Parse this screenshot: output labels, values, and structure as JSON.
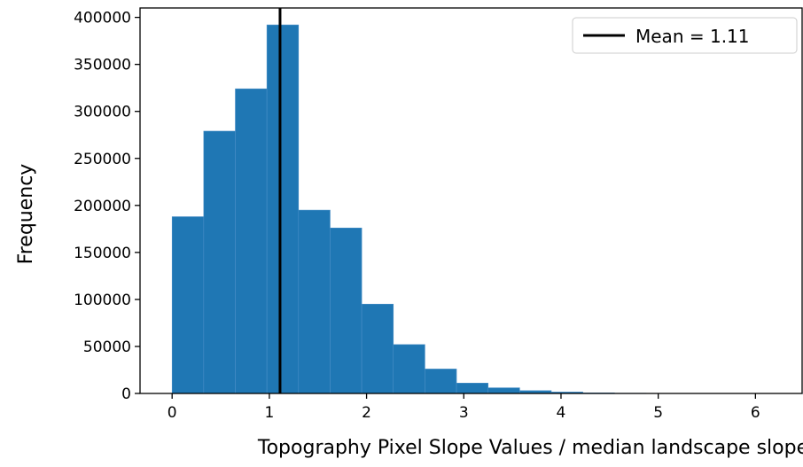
{
  "chart_data": {
    "type": "bar",
    "subtype": "histogram",
    "xlabel": "Topography Pixel Slope Values / median landscape slope",
    "ylabel": "Frequency",
    "xlim": [
      -0.33,
      6.48
    ],
    "ylim": [
      0,
      410000
    ],
    "x_ticks": [
      0,
      1,
      2,
      3,
      4,
      5,
      6
    ],
    "y_ticks": [
      0,
      50000,
      100000,
      150000,
      200000,
      250000,
      300000,
      350000,
      400000
    ],
    "bin_width": 0.325,
    "bin_edges_start": 0,
    "values": [
      188000,
      279000,
      324000,
      392000,
      195000,
      176000,
      95000,
      52000,
      26000,
      11000,
      6000,
      3000,
      1500,
      600,
      250,
      120,
      60,
      30,
      15,
      8
    ],
    "bar_color": "#1f77b4",
    "mean_line": {
      "value": 1.11,
      "color": "#000000"
    },
    "legend": {
      "position": "top-right",
      "entries": [
        "Mean = 1.11"
      ]
    },
    "grid": false
  }
}
